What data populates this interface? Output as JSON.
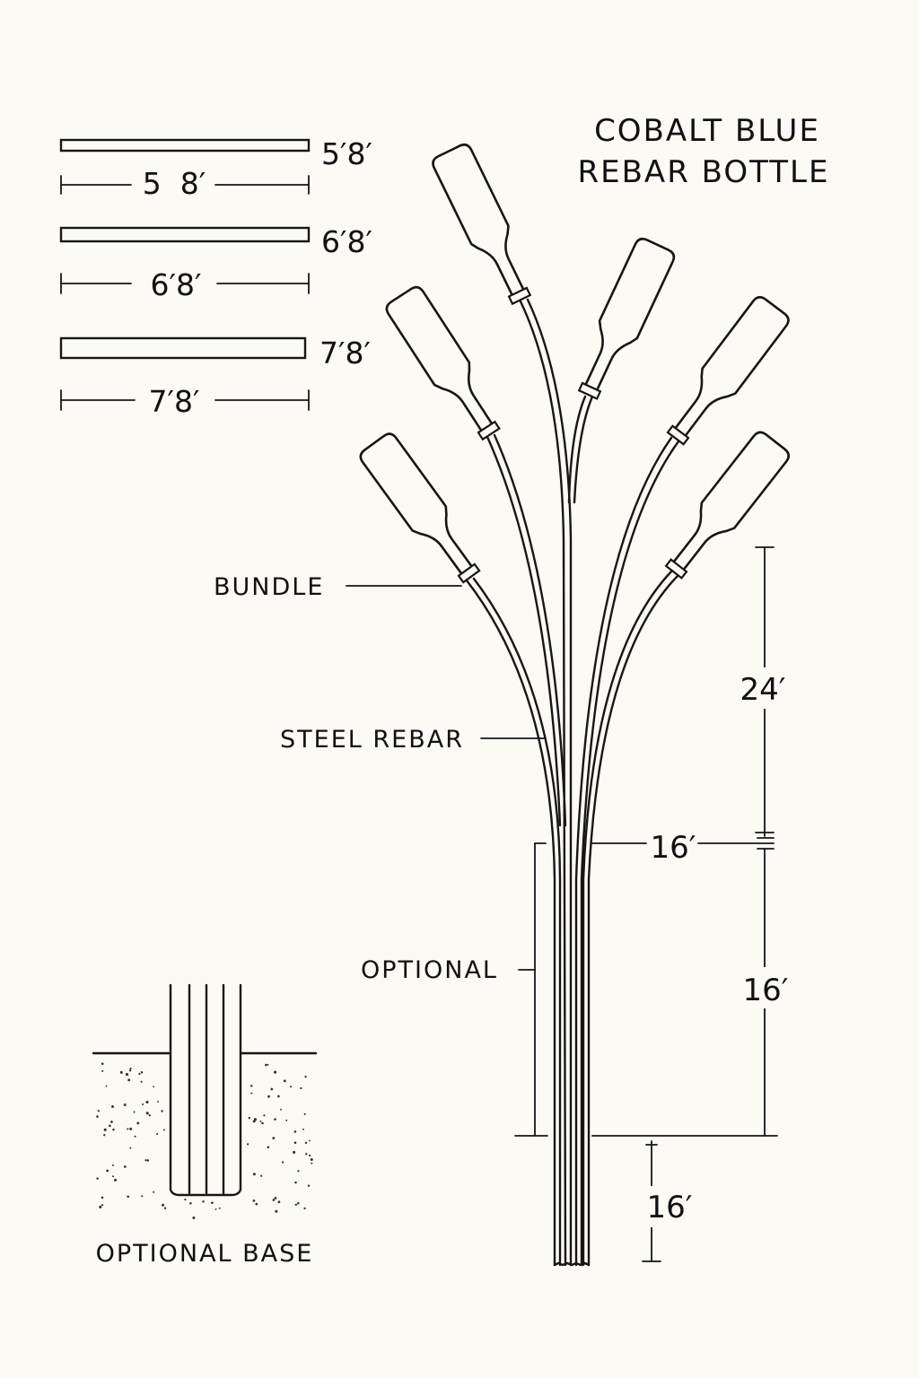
{
  "title": {
    "line1": "COBALT BLUE",
    "line2": "REBAR BOTTLE"
  },
  "rod_lengths": [
    {
      "label": "5′8′",
      "dimension": "5  8′"
    },
    {
      "label": "6′8′",
      "dimension": "6′8′"
    },
    {
      "label": "7′8′",
      "dimension": "7′8′"
    }
  ],
  "callouts": {
    "bundle": "BUNDLE",
    "steel_rebar": "STEEL REBAR",
    "optional": "OPTIONAL"
  },
  "dimensions": {
    "upper": "24′",
    "mid_tick": "16′",
    "middle": "16′",
    "lower": "16′"
  },
  "base_detail": {
    "label": "OPTIONAL BASE"
  },
  "bottle_count": 6
}
